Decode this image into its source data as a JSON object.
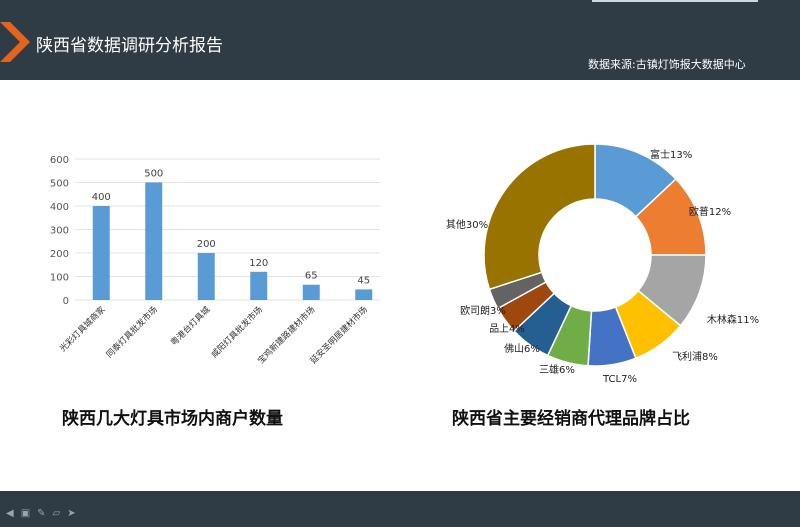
{
  "header": {
    "title": "陕西省数据调研分析报告",
    "source": "数据来源:古镇灯饰报大数据中心"
  },
  "colors": {
    "header_bg": "#2f3b45",
    "logo_orange": "#e3641c",
    "bar": "#5b9bd5"
  },
  "captions": {
    "left": "陕西几大灯具市场内商户数量",
    "right": "陕西省主要经销商代理品牌占比"
  },
  "footer": {
    "tools": [
      "arrow-icon",
      "slide-icon",
      "pen-icon",
      "eraser-icon",
      "pointer-icon"
    ]
  },
  "chart_data": [
    {
      "type": "bar",
      "categories": [
        "光彩灯具城商家",
        "同泰灯具批发市场",
        "粤港台灯具城",
        "咸阳灯具批发市场",
        "宝鸡新建路建材市场",
        "延安圣明居建材市场"
      ],
      "values": [
        400,
        500,
        200,
        120,
        65,
        45
      ],
      "value_labels": [
        "400",
        "500",
        "200",
        "120",
        "65",
        "45"
      ],
      "yticks": [
        "0",
        "100",
        "200",
        "300",
        "400",
        "500",
        "600"
      ],
      "ylim": [
        0,
        600
      ],
      "grid": true,
      "color": "#5b9bd5"
    },
    {
      "type": "pie",
      "donut": true,
      "slices": [
        {
          "label": "富士13%",
          "value": 13,
          "color": "#5b9bd5"
        },
        {
          "label": "欧普12%",
          "value": 12,
          "color": "#ed7d31"
        },
        {
          "label": "木林森11%",
          "value": 11,
          "color": "#a5a5a5"
        },
        {
          "label": "飞利浦8%",
          "value": 8,
          "color": "#ffc000"
        },
        {
          "label": "TCL7%",
          "value": 7,
          "color": "#4472c4"
        },
        {
          "label": "三雄6%",
          "value": 6,
          "color": "#70ad47"
        },
        {
          "label": "佛山6%",
          "value": 6,
          "color": "#255e91"
        },
        {
          "label": "品上4%",
          "value": 4,
          "color": "#9e480e"
        },
        {
          "label": "欧司朗3%",
          "value": 3,
          "color": "#636363"
        },
        {
          "label": "其他30%",
          "value": 30,
          "color": "#997300"
        }
      ]
    }
  ]
}
